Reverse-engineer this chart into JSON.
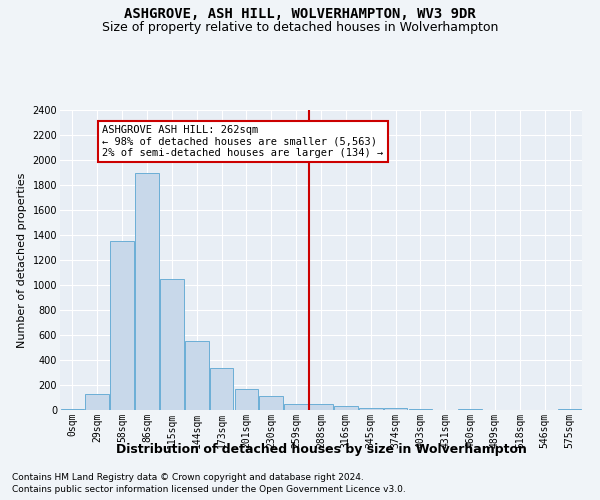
{
  "title": "ASHGROVE, ASH HILL, WOLVERHAMPTON, WV3 9DR",
  "subtitle": "Size of property relative to detached houses in Wolverhampton",
  "xlabel": "Distribution of detached houses by size in Wolverhampton",
  "ylabel": "Number of detached properties",
  "footnote1": "Contains HM Land Registry data © Crown copyright and database right 2024.",
  "footnote2": "Contains public sector information licensed under the Open Government Licence v3.0.",
  "annotation_title": "ASHGROVE ASH HILL: 262sqm",
  "annotation_line1": "← 98% of detached houses are smaller (5,563)",
  "annotation_line2": "2% of semi-detached houses are larger (134) →",
  "bar_color": "#c8d8ea",
  "bar_edge_color": "#6baed6",
  "vline_color": "#cc0000",
  "ylim": [
    0,
    2400
  ],
  "yticks": [
    0,
    200,
    400,
    600,
    800,
    1000,
    1200,
    1400,
    1600,
    1800,
    2000,
    2200,
    2400
  ],
  "categories": [
    "0sqm",
    "29sqm",
    "58sqm",
    "86sqm",
    "115sqm",
    "144sqm",
    "173sqm",
    "201sqm",
    "230sqm",
    "259sqm",
    "288sqm",
    "316sqm",
    "345sqm",
    "374sqm",
    "403sqm",
    "431sqm",
    "460sqm",
    "489sqm",
    "518sqm",
    "546sqm",
    "575sqm"
  ],
  "values": [
    5,
    125,
    1350,
    1900,
    1050,
    550,
    340,
    170,
    115,
    50,
    50,
    30,
    20,
    20,
    12,
    0,
    5,
    0,
    0,
    0,
    5
  ],
  "bg_color": "#f0f4f8",
  "plot_bg_color": "#e8eef5",
  "grid_color": "#ffffff",
  "title_fontsize": 10,
  "subtitle_fontsize": 9,
  "xlabel_fontsize": 9,
  "ylabel_fontsize": 8,
  "tick_fontsize": 7,
  "annotation_fontsize": 7.5,
  "footnote_fontsize": 6.5,
  "vline_position": 9.5
}
